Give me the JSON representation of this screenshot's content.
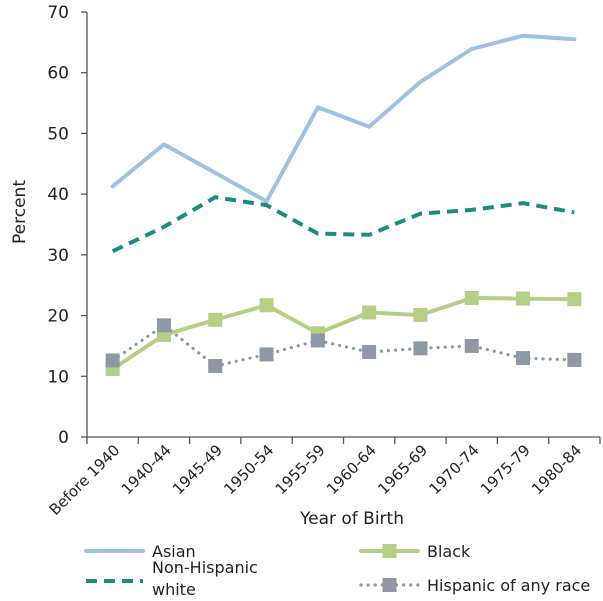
{
  "chart_data": {
    "type": "line",
    "xlabel": "Year of Birth",
    "ylabel": "Percent",
    "ylim": [
      0,
      70
    ],
    "yticks": [
      0,
      10,
      20,
      30,
      40,
      50,
      60,
      70
    ],
    "grid": false,
    "legend_position": "bottom",
    "categories": [
      "Before 1940",
      "1940-44",
      "1945-49",
      "1950-54",
      "1955-59",
      "1960-64",
      "1965-69",
      "1970-74",
      "1975-79",
      "1980-84"
    ],
    "series": [
      {
        "name": "Asian",
        "legend_lines": [
          "Asian"
        ],
        "color": "#9fc2df",
        "style": "solid",
        "marker": "none",
        "values": [
          41.3,
          48.2,
          43.5,
          38.8,
          54.3,
          51.1,
          58.5,
          63.9,
          66.1,
          65.5
        ]
      },
      {
        "name": "Non-Hispanic white",
        "legend_lines": [
          "Non-Hispanic",
          "white"
        ],
        "color": "#1a8c80",
        "style": "dashed",
        "marker": "none",
        "values": [
          30.6,
          34.6,
          39.5,
          38.2,
          33.5,
          33.3,
          36.8,
          37.4,
          38.5,
          37.0
        ]
      },
      {
        "name": "Black",
        "legend_lines": [
          "Black"
        ],
        "color": "#b5cf86",
        "style": "solid",
        "marker": "square",
        "values": [
          11.2,
          16.8,
          19.3,
          21.7,
          17.1,
          20.5,
          20.1,
          22.9,
          22.8,
          22.7
        ]
      },
      {
        "name": "Hispanic of any race",
        "legend_lines": [
          "Hispanic of any race"
        ],
        "color": "#8e98a6",
        "style": "dotted",
        "marker": "square",
        "values": [
          12.6,
          18.4,
          11.7,
          13.6,
          15.9,
          14.0,
          14.6,
          15.0,
          13.0,
          12.7
        ]
      }
    ]
  }
}
